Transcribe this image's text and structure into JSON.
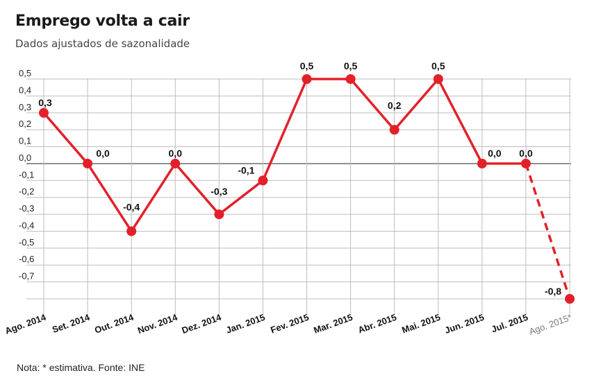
{
  "title": "Emprego volta a cair",
  "subtitle": "Dados ajustados de sazonalidade",
  "note": "Nota: * estimativa. Fonte: INE",
  "colors": {
    "line": "#e3202a",
    "grid": "#bdbdbd",
    "zero": "#777777",
    "estimate_label": "#777777"
  },
  "chart_data": {
    "type": "line",
    "categories": [
      "Ago. 2014",
      "Set. 2014",
      "Out. 2014",
      "Nov. 2014",
      "Dez. 2014",
      "Jan. 2015",
      "Fev. 2015",
      "Mar. 2015",
      "Abr. 2015",
      "Mai. 2015",
      "Jun. 2015",
      "Jul. 2015",
      "Ago. 2015*"
    ],
    "values": [
      0.3,
      0.0,
      -0.4,
      0.0,
      -0.3,
      -0.1,
      0.5,
      0.5,
      0.2,
      0.5,
      0.0,
      0.0,
      -0.8
    ],
    "data_labels": [
      "0,3",
      "0,0",
      "-0,4",
      "0,0",
      "-0,3",
      "-0,1",
      "0,5",
      "0,5",
      "0,2",
      "0,5",
      "0,0",
      "0,0",
      "-0,8"
    ],
    "estimated": [
      false,
      false,
      false,
      false,
      false,
      false,
      false,
      false,
      false,
      false,
      false,
      false,
      true
    ],
    "y_ticks": [
      0.5,
      0.4,
      0.3,
      0.2,
      0.1,
      0.0,
      -0.1,
      -0.2,
      -0.3,
      -0.4,
      -0.5,
      -0.6,
      -0.7
    ],
    "y_tick_labels": [
      "0,5",
      "0,4",
      "0,3",
      "0,2",
      "0,1",
      "0,0",
      "-0,1",
      "-0,2",
      "-0,3",
      "-0,4",
      "-0,5",
      "-0,6",
      "-0,7"
    ],
    "ylim": [
      -0.8,
      0.5
    ],
    "grid": true,
    "xlabel": "",
    "ylabel": ""
  }
}
